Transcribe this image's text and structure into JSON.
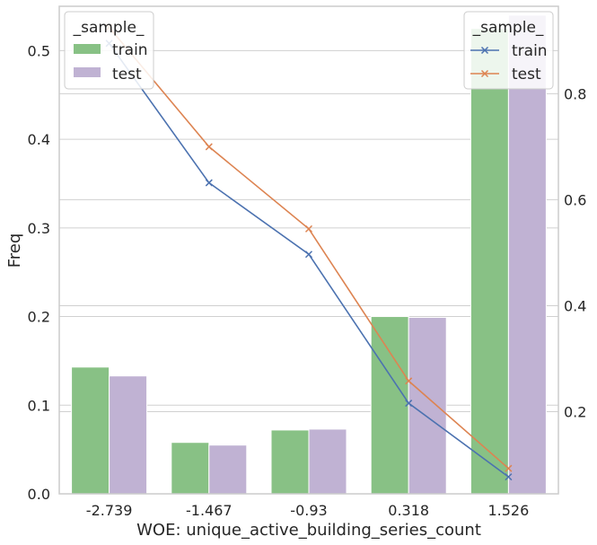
{
  "chart_data": {
    "type": "bar+line",
    "xlabel": "WOE: unique_active_building_series_count",
    "ylabel": "Freq",
    "categories": [
      "-2.739",
      "-1.467",
      "-0.93",
      "0.318",
      "1.526"
    ],
    "bar_series": [
      {
        "name": "train",
        "color": "#88c185",
        "values": [
          0.143,
          0.058,
          0.072,
          0.2,
          0.525
        ]
      },
      {
        "name": "test",
        "color": "#c0b2d3",
        "values": [
          0.133,
          0.055,
          0.073,
          0.199,
          0.54
        ]
      }
    ],
    "line_series": [
      {
        "name": "train",
        "color": "#4c72b0",
        "marker": "x",
        "values": [
          0.895,
          0.632,
          0.497,
          0.216,
          0.077
        ]
      },
      {
        "name": "test",
        "color": "#dd8452",
        "marker": "x",
        "values": [
          0.925,
          0.7,
          0.545,
          0.258,
          0.093
        ]
      }
    ],
    "ylim_left": [
      0,
      0.55
    ],
    "yticks_left": [
      "0.0",
      "0.1",
      "0.2",
      "0.3",
      "0.4",
      "0.5"
    ],
    "ylim_right": [
      0.045,
      0.965
    ],
    "yticks_right": [
      "0.2",
      "0.4",
      "0.6",
      "0.8"
    ],
    "bar_legend": {
      "title": "_sample_",
      "position": "top-left"
    },
    "line_legend": {
      "title": "_sample_",
      "position": "top-right"
    },
    "grid": true
  }
}
